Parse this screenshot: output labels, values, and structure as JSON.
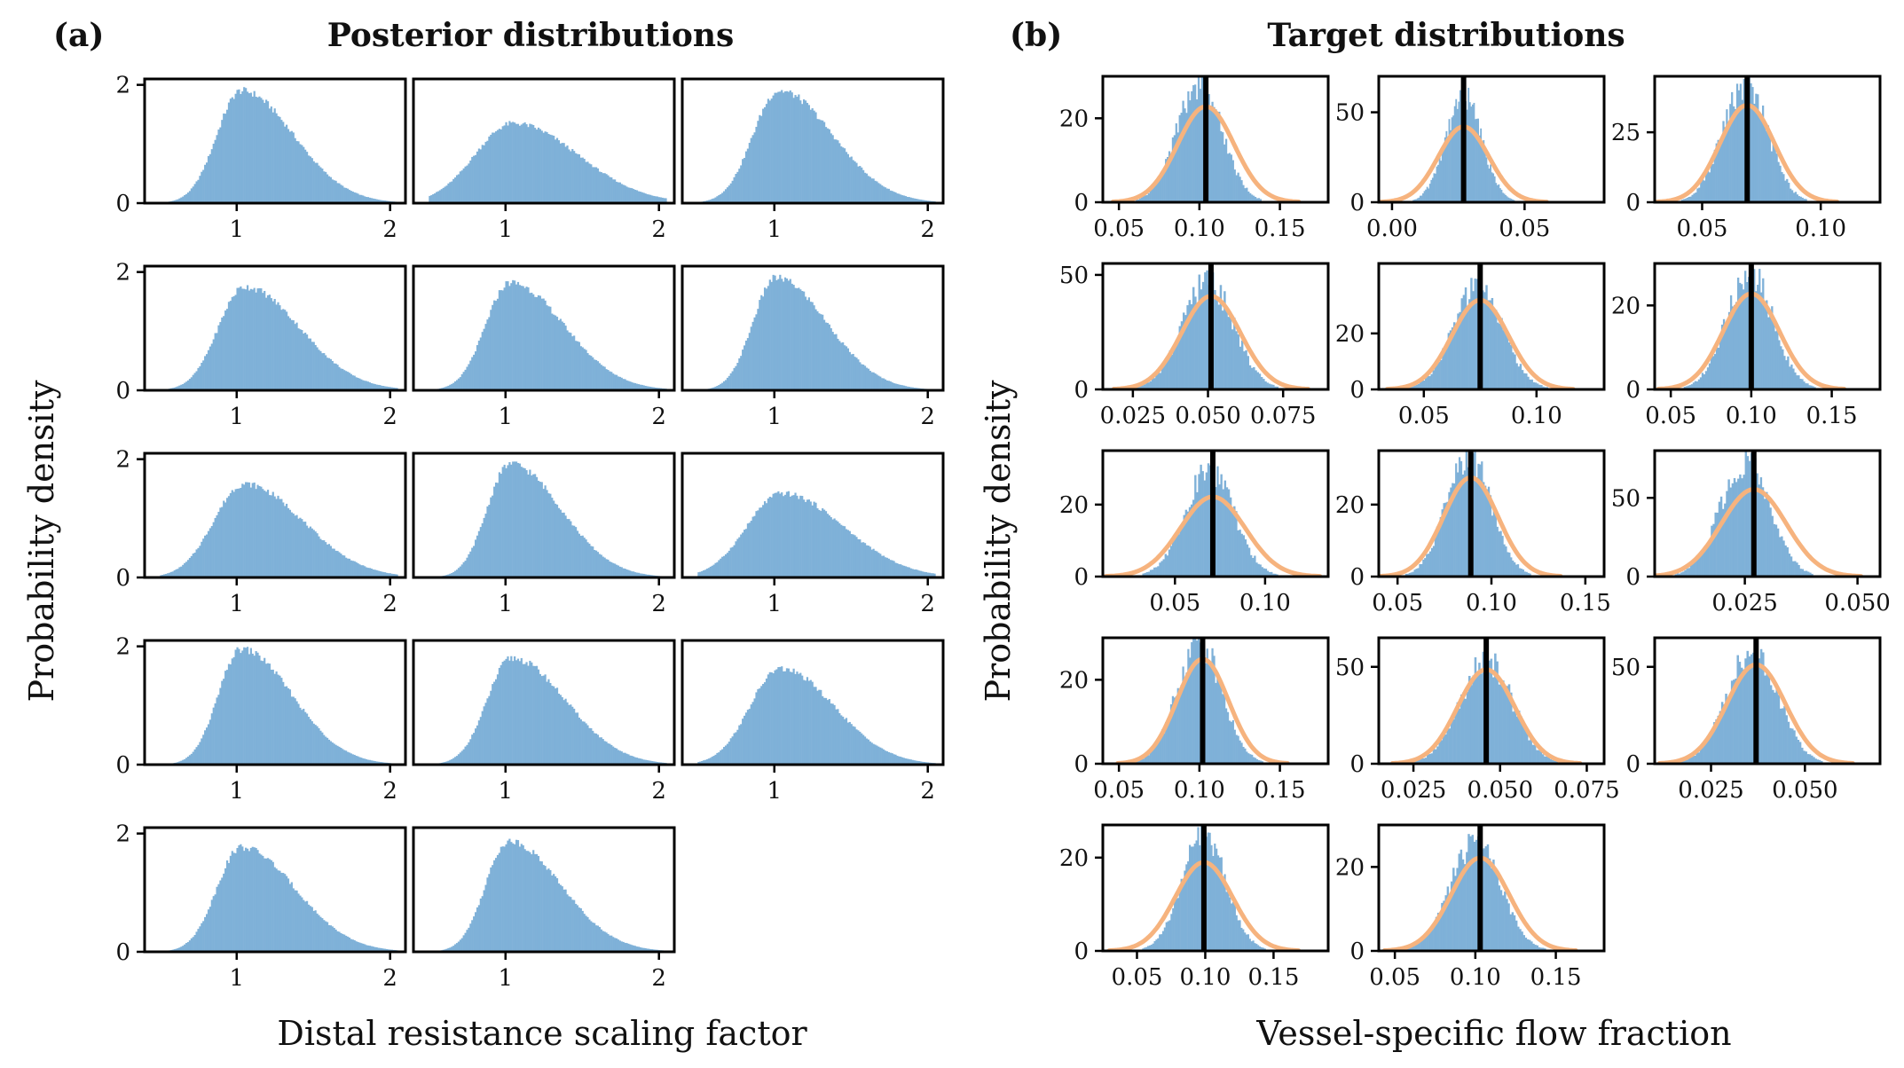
{
  "panels": {
    "a": {
      "label": "(a)",
      "title": "Posterior distributions",
      "xlabel": "Distal resistance scaling factor",
      "ylabel": "Probability density"
    },
    "b": {
      "label": "(b)",
      "title": "Target distributions",
      "xlabel": "Vessel-specific flow fraction",
      "ylabel": "Probability density"
    }
  },
  "colors": {
    "histogram": "#7fb1d8",
    "target_curve": "#f6b37e",
    "target_line": "#000000"
  },
  "chart_data": [
    {
      "type": "histogram",
      "panel": "a",
      "title": "Posterior distributions",
      "xlabel": "Distal resistance scaling factor",
      "ylabel": "Probability density",
      "grid": false,
      "subplots": [
        {
          "xlim": [
            0.4,
            2.1
          ],
          "ylim": [
            0,
            2.1
          ],
          "xticks": [
            "1",
            "2"
          ],
          "yticks": [
            "0",
            "2"
          ],
          "mode": 1.03,
          "peak": 1.9,
          "left_spread": 0.16,
          "right_spread": 0.34
        },
        {
          "xlim": [
            0.4,
            2.1
          ],
          "ylim": [
            0,
            2.1
          ],
          "xticks": [
            "1",
            "2"
          ],
          "yticks": [],
          "mode": 1.05,
          "peak": 1.35,
          "left_spread": 0.25,
          "right_spread": 0.42
        },
        {
          "xlim": [
            0.4,
            2.1
          ],
          "ylim": [
            0,
            2.1
          ],
          "xticks": [
            "1",
            "2"
          ],
          "yticks": [],
          "mode": 1.03,
          "peak": 1.9,
          "left_spread": 0.17,
          "right_spread": 0.35
        },
        {
          "xlim": [
            0.4,
            2.1
          ],
          "ylim": [
            0,
            2.1
          ],
          "xticks": [
            "1",
            "2"
          ],
          "yticks": [
            "0",
            "2"
          ],
          "mode": 1.05,
          "peak": 1.75,
          "left_spread": 0.17,
          "right_spread": 0.36
        },
        {
          "xlim": [
            0.4,
            2.1
          ],
          "ylim": [
            0,
            2.1
          ],
          "xticks": [
            "1",
            "2"
          ],
          "yticks": [],
          "mode": 1.03,
          "peak": 1.82,
          "left_spread": 0.16,
          "right_spread": 0.35
        },
        {
          "xlim": [
            0.4,
            2.1
          ],
          "ylim": [
            0,
            2.1
          ],
          "xticks": [
            "1",
            "2"
          ],
          "yticks": [],
          "mode": 1.01,
          "peak": 1.9,
          "left_spread": 0.15,
          "right_spread": 0.33
        },
        {
          "xlim": [
            0.4,
            2.1
          ],
          "ylim": [
            0,
            2.1
          ],
          "xticks": [
            "1",
            "2"
          ],
          "yticks": [
            "0",
            "2"
          ],
          "mode": 1.05,
          "peak": 1.58,
          "left_spread": 0.2,
          "right_spread": 0.38
        },
        {
          "xlim": [
            0.4,
            2.1
          ],
          "ylim": [
            0,
            2.1
          ],
          "xticks": [
            "1",
            "2"
          ],
          "yticks": [],
          "mode": 1.03,
          "peak": 1.92,
          "left_spread": 0.15,
          "right_spread": 0.33
        },
        {
          "xlim": [
            0.4,
            2.1
          ],
          "ylim": [
            0,
            2.1
          ],
          "xticks": [
            "1",
            "2"
          ],
          "yticks": [],
          "mode": 1.05,
          "peak": 1.42,
          "left_spread": 0.23,
          "right_spread": 0.4
        },
        {
          "xlim": [
            0.4,
            2.1
          ],
          "ylim": [
            0,
            2.1
          ],
          "xticks": [
            "1",
            "2"
          ],
          "yticks": [
            "0",
            "2"
          ],
          "mode": 1.03,
          "peak": 1.95,
          "left_spread": 0.15,
          "right_spread": 0.33
        },
        {
          "xlim": [
            0.4,
            2.1
          ],
          "ylim": [
            0,
            2.1
          ],
          "xticks": [
            "1",
            "2"
          ],
          "yticks": [],
          "mode": 1.04,
          "peak": 1.8,
          "left_spread": 0.16,
          "right_spread": 0.35
        },
        {
          "xlim": [
            0.4,
            2.1
          ],
          "ylim": [
            0,
            2.1
          ],
          "xticks": [
            "1",
            "2"
          ],
          "yticks": [],
          "mode": 1.04,
          "peak": 1.62,
          "left_spread": 0.2,
          "right_spread": 0.35
        },
        {
          "xlim": [
            0.4,
            2.1
          ],
          "ylim": [
            0,
            2.1
          ],
          "xticks": [
            "1",
            "2"
          ],
          "yticks": [
            "0",
            "2"
          ],
          "mode": 1.03,
          "peak": 1.77,
          "left_spread": 0.16,
          "right_spread": 0.35
        },
        {
          "xlim": [
            0.4,
            2.1
          ],
          "ylim": [
            0,
            2.1
          ],
          "xticks": [
            "1",
            "2"
          ],
          "yticks": [],
          "mode": 1.02,
          "peak": 1.87,
          "left_spread": 0.15,
          "right_spread": 0.34
        }
      ]
    },
    {
      "type": "histogram",
      "panel": "b",
      "title": "Target distributions",
      "xlabel": "Vessel-specific flow fraction",
      "ylabel": "Probability density",
      "grid": false,
      "subplots": [
        {
          "xlim": [
            0.04,
            0.18
          ],
          "ylim": [
            0,
            30
          ],
          "xticks": [
            "0.05",
            "0.10",
            "0.15"
          ],
          "yticks": [
            "0",
            "20"
          ],
          "target": 0.104,
          "mean": 0.104,
          "sd": 0.0175,
          "hist_mean": 0.1,
          "hist_sd": 0.014
        },
        {
          "xlim": [
            -0.005,
            0.08
          ],
          "ylim": [
            0,
            70
          ],
          "xticks": [
            "0.00",
            "0.05"
          ],
          "yticks": [
            "0",
            "50"
          ],
          "target": 0.027,
          "mean": 0.027,
          "sd": 0.0095,
          "hist_mean": 0.027,
          "hist_sd": 0.0068
        },
        {
          "xlim": [
            0.03,
            0.125
          ],
          "ylim": [
            0,
            45
          ],
          "xticks": [
            "0.05",
            "0.10"
          ],
          "yticks": [
            "0",
            "25"
          ],
          "target": 0.069,
          "mean": 0.069,
          "sd": 0.0115,
          "hist_mean": 0.068,
          "hist_sd": 0.0095
        },
        {
          "xlim": [
            0.015,
            0.09
          ],
          "ylim": [
            0,
            55
          ],
          "xticks": [
            "0.025",
            "0.050",
            "0.075"
          ],
          "yticks": [
            "0",
            "50"
          ],
          "target": 0.051,
          "mean": 0.051,
          "sd": 0.0098,
          "hist_mean": 0.05,
          "hist_sd": 0.0085
        },
        {
          "xlim": [
            0.03,
            0.13
          ],
          "ylim": [
            0,
            45
          ],
          "xticks": [
            "0.05",
            "0.10"
          ],
          "yticks": [
            "0",
            "20"
          ],
          "target": 0.075,
          "mean": 0.075,
          "sd": 0.0125,
          "hist_mean": 0.074,
          "hist_sd": 0.011
        },
        {
          "xlim": [
            0.04,
            0.18
          ],
          "ylim": [
            0,
            30
          ],
          "xticks": [
            "0.05",
            "0.10",
            "0.15"
          ],
          "yticks": [
            "0",
            "20"
          ],
          "target": 0.1,
          "mean": 0.1,
          "sd": 0.0175,
          "hist_mean": 0.099,
          "hist_sd": 0.0145
        },
        {
          "xlim": [
            0.01,
            0.135
          ],
          "ylim": [
            0,
            35
          ],
          "xticks": [
            "0.05",
            "0.10"
          ],
          "yticks": [
            "0",
            "20"
          ],
          "target": 0.071,
          "mean": 0.071,
          "sd": 0.018,
          "hist_mean": 0.069,
          "hist_sd": 0.0135
        },
        {
          "xlim": [
            0.04,
            0.16
          ],
          "ylim": [
            0,
            35
          ],
          "xticks": [
            "0.05",
            "0.10",
            "0.15"
          ],
          "yticks": [
            "0",
            "20"
          ],
          "target": 0.089,
          "mean": 0.089,
          "sd": 0.0145,
          "hist_mean": 0.088,
          "hist_sd": 0.012
        },
        {
          "xlim": [
            0.005,
            0.055
          ],
          "ylim": [
            0,
            80
          ],
          "xticks": [
            "0.025",
            "0.050"
          ],
          "yticks": [
            "0",
            "50"
          ],
          "target": 0.027,
          "mean": 0.027,
          "sd": 0.0072,
          "hist_mean": 0.025,
          "hist_sd": 0.0055
        },
        {
          "xlim": [
            0.04,
            0.18
          ],
          "ylim": [
            0,
            30
          ],
          "xticks": [
            "0.05",
            "0.10",
            "0.15"
          ],
          "yticks": [
            "0",
            "20"
          ],
          "target": 0.102,
          "mean": 0.102,
          "sd": 0.016,
          "hist_mean": 0.1,
          "hist_sd": 0.014
        },
        {
          "xlim": [
            0.015,
            0.08
          ],
          "ylim": [
            0,
            65
          ],
          "xticks": [
            "0.025",
            "0.050",
            "0.075"
          ],
          "yticks": [
            "0",
            "50"
          ],
          "target": 0.046,
          "mean": 0.046,
          "sd": 0.0082,
          "hist_mean": 0.046,
          "hist_sd": 0.0075
        },
        {
          "xlim": [
            0.01,
            0.07
          ],
          "ylim": [
            0,
            65
          ],
          "xticks": [
            "0.025",
            "0.050"
          ],
          "yticks": [
            "0",
            "50"
          ],
          "target": 0.037,
          "mean": 0.037,
          "sd": 0.0078,
          "hist_mean": 0.036,
          "hist_sd": 0.0068
        },
        {
          "xlim": [
            0.025,
            0.19
          ],
          "ylim": [
            0,
            27
          ],
          "xticks": [
            "0.05",
            "0.10",
            "0.15"
          ],
          "yticks": [
            "0",
            "20"
          ],
          "target": 0.099,
          "mean": 0.099,
          "sd": 0.021,
          "hist_mean": 0.099,
          "hist_sd": 0.016
        },
        {
          "xlim": [
            0.04,
            0.18
          ],
          "ylim": [
            0,
            30
          ],
          "xticks": [
            "0.05",
            "0.10",
            "0.15"
          ],
          "yticks": [
            "0",
            "20"
          ],
          "target": 0.103,
          "mean": 0.103,
          "sd": 0.018,
          "hist_mean": 0.1,
          "hist_sd": 0.0155
        }
      ]
    }
  ]
}
